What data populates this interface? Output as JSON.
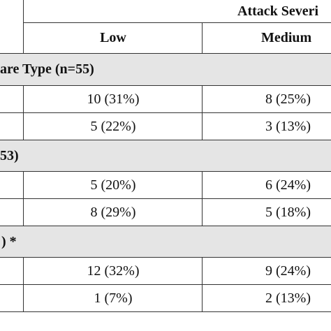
{
  "header": {
    "group_label": "Attack Severi",
    "col_low": "Low",
    "col_medium": "Medium"
  },
  "sections": [
    {
      "label": "are Type (n=55)",
      "rows": [
        {
          "low": "10 (31%)",
          "medium": "8 (25%)"
        },
        {
          "low": "5 (22%)",
          "medium": "3 (13%)"
        }
      ]
    },
    {
      "label": "53)",
      "rows": [
        {
          "low": "5 (20%)",
          "medium": "6 (24%)"
        },
        {
          "low": "8 (29%)",
          "medium": "5 (18%)"
        }
      ]
    },
    {
      "label": ") *",
      "rows": [
        {
          "low": "12 (32%)",
          "medium": "9 (24%)"
        },
        {
          "low": "1 (7%)",
          "medium": "2 (13%)"
        }
      ]
    }
  ]
}
